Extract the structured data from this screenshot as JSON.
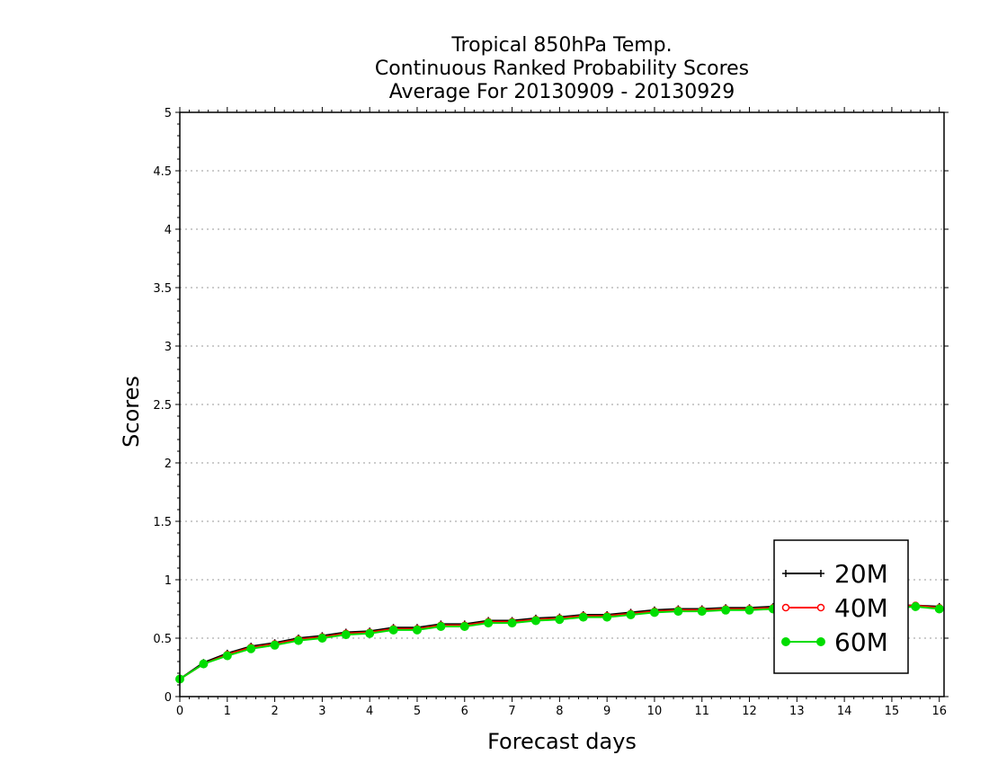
{
  "chart_data": {
    "type": "line",
    "title_lines": [
      "Tropical 850hPa Temp.",
      "Continuous Ranked Probability Scores",
      "Average For 20130909 - 20130929"
    ],
    "xlabel": "Forecast days",
    "ylabel": "Scores",
    "xlim": [
      0,
      16.1
    ],
    "ylim": [
      0,
      5
    ],
    "x_ticks": [
      0,
      1,
      2,
      3,
      4,
      5,
      6,
      7,
      8,
      9,
      10,
      11,
      12,
      13,
      14,
      15,
      16
    ],
    "y_ticks": [
      0,
      0.5,
      1,
      1.5,
      2,
      2.5,
      3,
      3.5,
      4,
      4.5,
      5
    ],
    "y_tick_labels": [
      "0",
      "0.5",
      "1",
      "1.5",
      "2",
      "2.5",
      "3",
      "3.5",
      "4",
      "4.5",
      "5"
    ],
    "grid": "horizontal dotted",
    "legend_position": "bottom-right",
    "x": [
      0,
      0.5,
      1,
      1.5,
      2,
      2.5,
      3,
      3.5,
      4,
      4.5,
      5,
      5.5,
      6,
      6.5,
      7,
      7.5,
      8,
      8.5,
      9,
      9.5,
      10,
      10.5,
      11,
      11.5,
      12,
      12.5,
      13,
      13.5,
      14,
      14.5,
      15,
      15.5,
      16
    ],
    "series": [
      {
        "name": "20M",
        "color": "#000000",
        "marker": "plus",
        "values": [
          0.15,
          0.29,
          0.37,
          0.43,
          0.46,
          0.5,
          0.52,
          0.55,
          0.56,
          0.59,
          0.59,
          0.62,
          0.62,
          0.65,
          0.65,
          0.67,
          0.68,
          0.7,
          0.7,
          0.72,
          0.74,
          0.75,
          0.75,
          0.76,
          0.76,
          0.77,
          0.77,
          0.78,
          0.78,
          0.78,
          0.78,
          0.78,
          0.77
        ]
      },
      {
        "name": "40M",
        "color": "#ff0000",
        "marker": "open-circle",
        "values": [
          0.15,
          0.28,
          0.36,
          0.42,
          0.45,
          0.49,
          0.51,
          0.54,
          0.55,
          0.58,
          0.58,
          0.61,
          0.61,
          0.64,
          0.64,
          0.66,
          0.67,
          0.69,
          0.69,
          0.71,
          0.73,
          0.74,
          0.74,
          0.75,
          0.75,
          0.76,
          0.76,
          0.77,
          0.77,
          0.77,
          0.77,
          0.78,
          0.76
        ]
      },
      {
        "name": "60M",
        "color": "#00dd00",
        "marker": "filled-circle",
        "values": [
          0.15,
          0.28,
          0.35,
          0.41,
          0.44,
          0.48,
          0.5,
          0.53,
          0.54,
          0.57,
          0.57,
          0.6,
          0.6,
          0.63,
          0.63,
          0.65,
          0.66,
          0.68,
          0.68,
          0.7,
          0.72,
          0.73,
          0.73,
          0.74,
          0.74,
          0.75,
          0.75,
          0.76,
          0.76,
          0.76,
          0.76,
          0.77,
          0.75
        ]
      }
    ]
  }
}
